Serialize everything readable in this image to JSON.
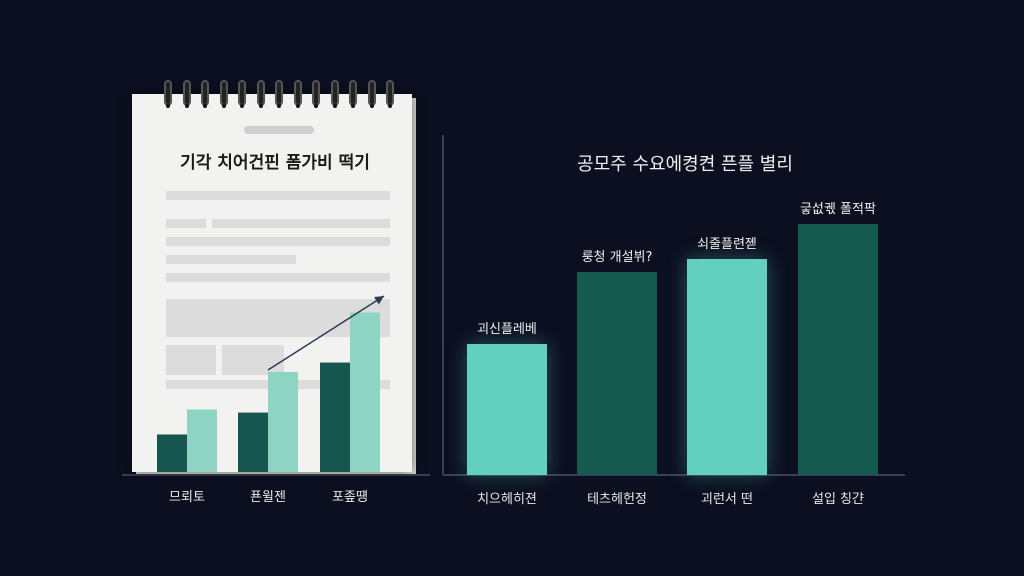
{
  "colors": {
    "background": "#0b0f1f",
    "bar_light": "#62d0bc",
    "bar_dark": "#15594f",
    "inset_dark": "#16564e",
    "inset_light": "#8fd3c3"
  },
  "chart_data": [
    {
      "type": "bar",
      "title": "기각 치어건핀 폼가비 떡기",
      "categories": [
        "므뢰토",
        "푠윌젠",
        "포좊떙"
      ],
      "series": [
        {
          "values": [
            1.2,
            1.9,
            3.5
          ]
        },
        {
          "values": [
            2.0,
            3.2,
            5.1
          ]
        }
      ],
      "ylim": [
        0,
        5.5
      ],
      "grid": false,
      "annotation": "upward-trend-arrow"
    },
    {
      "type": "bar",
      "title": "공모주 수요에켱켠 픈플 별리",
      "categories": [
        "치으헤히젼",
        "테츠헤헌정",
        "괴런서 떤",
        "설입 칭갼"
      ],
      "values": [
        131,
        203,
        216,
        251
      ],
      "data_labels": [
        "괴신플레베",
        "룽청 개설뷔?",
        "쇠줄플련졛",
        "긓섮궧 폴적팍"
      ],
      "ylim": [
        0,
        300
      ],
      "grid": false
    }
  ]
}
